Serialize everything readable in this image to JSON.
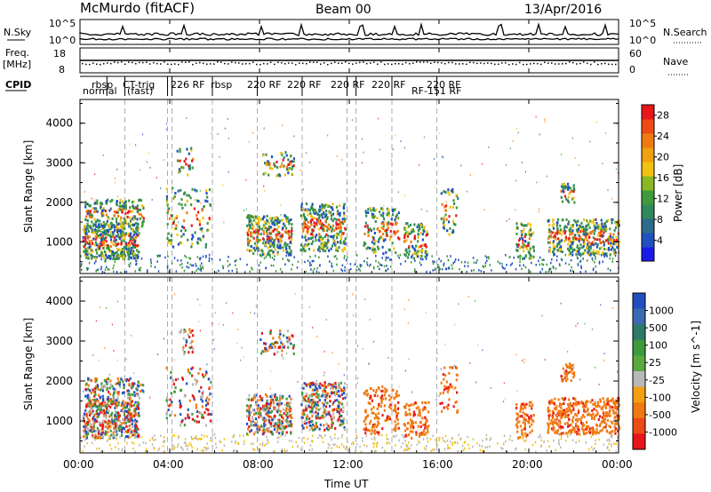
{
  "header": {
    "title": "McMurdo (fitACF)",
    "beam": "Beam 00",
    "date": "13/Apr/2016"
  },
  "noise_panel": {
    "left_label": "N.Sky",
    "right_label": "N.Search",
    "left_ticks": [
      "10^5",
      "10^0"
    ],
    "right_ticks": [
      "10^5",
      "10^0"
    ]
  },
  "freq_panel": {
    "left_label": "Freq.",
    "left_unit": "[MHz]",
    "right_label": "Nave",
    "left_ticks": [
      "18",
      "8"
    ],
    "right_ticks": [
      "60",
      "0"
    ]
  },
  "cpid": {
    "label": "CPID",
    "row1": "rbsp",
    "row1b": "CT-trig",
    "row1c": "226 RF",
    "row1d": "rbsp",
    "row1e": "220 RF",
    "row1f": "220 RF",
    "row1g": "220 RF",
    "row1h": "220 RF",
    "row1i": "220 RF",
    "row2": "normal",
    "row2b": "(fast)",
    "row2c": "RF-151 RF"
  },
  "colors": {
    "red": "#e8161a",
    "orange": "#f07a12",
    "yellow": "#f2c210",
    "green": "#3e9a3a",
    "teal": "#2e8a5a",
    "blue": "#2050c0",
    "grey": "#b8b8b8"
  },
  "chart_data": [
    {
      "type": "heatmap",
      "name": "power",
      "ylabel": "Slant Range [km]",
      "xlabel": "Time UT",
      "x_ticks": [
        "00:00",
        "04:00",
        "08:00",
        "12:00",
        "16:00",
        "20:00",
        "00:00"
      ],
      "y_ticks": [
        "1000",
        "2000",
        "3000",
        "4000"
      ],
      "ylim": [
        200,
        4600
      ],
      "colorbar": {
        "label": "Power [dB]",
        "ticks": [
          "4",
          "8",
          "12",
          "16",
          "20",
          "24",
          "28"
        ],
        "range": [
          0,
          30
        ]
      }
    },
    {
      "type": "heatmap",
      "name": "velocity",
      "ylabel": "Slant Range [km]",
      "xlabel": "Time UT",
      "x_ticks": [
        "00:00",
        "04:00",
        "08:00",
        "12:00",
        "16:00",
        "20:00",
        "00:00"
      ],
      "y_ticks": [
        "1000",
        "2000",
        "3000",
        "4000"
      ],
      "ylim": [
        200,
        4600
      ],
      "colorbar": {
        "label": "Velocity [m s^-1]",
        "ticks": [
          "1000",
          "500",
          "100",
          "25",
          "-25",
          "-100",
          "-500",
          "-1000"
        ]
      }
    }
  ],
  "footer": {
    "xlabel": "Time UT"
  }
}
